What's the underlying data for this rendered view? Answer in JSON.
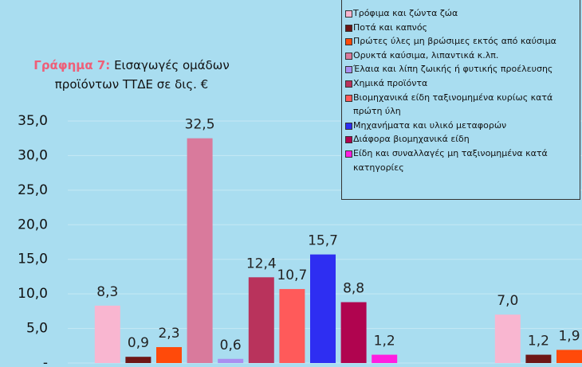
{
  "chart_data": {
    "type": "bar",
    "title_label": "Γράφημα 7:",
    "title": "Εισαγωγές ομάδων προϊόντων ΤΤΔΕ σε δις. €",
    "categories": [
      null,
      null
    ],
    "series": [
      {
        "name": "Τρόφιμα και ζώντα ζώα",
        "color": "#f9b6d0",
        "values": [
          8.3,
          7.0
        ],
        "value_labels": [
          "8,3",
          "7,0"
        ]
      },
      {
        "name": "Ποτά και καπνός",
        "color": "#6e1616",
        "values": [
          0.9,
          1.2
        ],
        "value_labels": [
          "0,9",
          "1,2"
        ]
      },
      {
        "name": "Πρώτες ύλες μη βρώσιμες εκτός από καύσιμα",
        "color": "#ff4a0a",
        "values": [
          2.3,
          1.9
        ],
        "value_labels": [
          "2,3",
          "1,9"
        ]
      },
      {
        "name": "Ορυκτά καύσιμα, λιπαντικά κ.λπ.",
        "color": "#d97a9c",
        "values": [
          32.5,
          null
        ],
        "value_labels": [
          "32,5",
          null
        ]
      },
      {
        "name": "Έλαια και λίπη ζωικής ή φυτικής προέλευσης",
        "color": "#a98ff0",
        "values": [
          0.6,
          null
        ],
        "value_labels": [
          "0,6",
          null
        ]
      },
      {
        "name": "Χημικά προϊόντα",
        "color": "#b9335c",
        "values": [
          12.4,
          null
        ],
        "value_labels": [
          "12,4",
          null
        ]
      },
      {
        "name": "Βιομηχανικά είδη ταξινομημένα κυρίως κατά πρώτη ύλη",
        "color": "#ff5a5a",
        "values": [
          10.7,
          null
        ],
        "value_labels": [
          "10,7",
          null
        ]
      },
      {
        "name": "Μηχανήματα και υλικό μεταφορών",
        "color": "#2e2ef2",
        "values": [
          15.7,
          null
        ],
        "value_labels": [
          "15,7",
          null
        ]
      },
      {
        "name": "Διάφορα βιομηχανικά είδη",
        "color": "#b0044f",
        "values": [
          8.8,
          null
        ],
        "value_labels": [
          "8,8",
          null
        ]
      },
      {
        "name": "Είδη και συναλλαγές μη ταξινομημένα κατά κατηγορίες",
        "color": "#ff1ee0",
        "values": [
          1.2,
          null
        ],
        "value_labels": [
          "1,2",
          null
        ]
      }
    ],
    "ylim": [
      0,
      35
    ],
    "yticks": [
      {
        "value": 0,
        "label": "-"
      },
      {
        "value": 5,
        "label": "5,0"
      },
      {
        "value": 10,
        "label": "10,0"
      },
      {
        "value": 15,
        "label": "15,0"
      },
      {
        "value": 20,
        "label": "20,0"
      },
      {
        "value": 25,
        "label": "25,0"
      },
      {
        "value": 30,
        "label": "30,0"
      },
      {
        "value": 35,
        "label": "35,0"
      }
    ],
    "grid": true
  }
}
